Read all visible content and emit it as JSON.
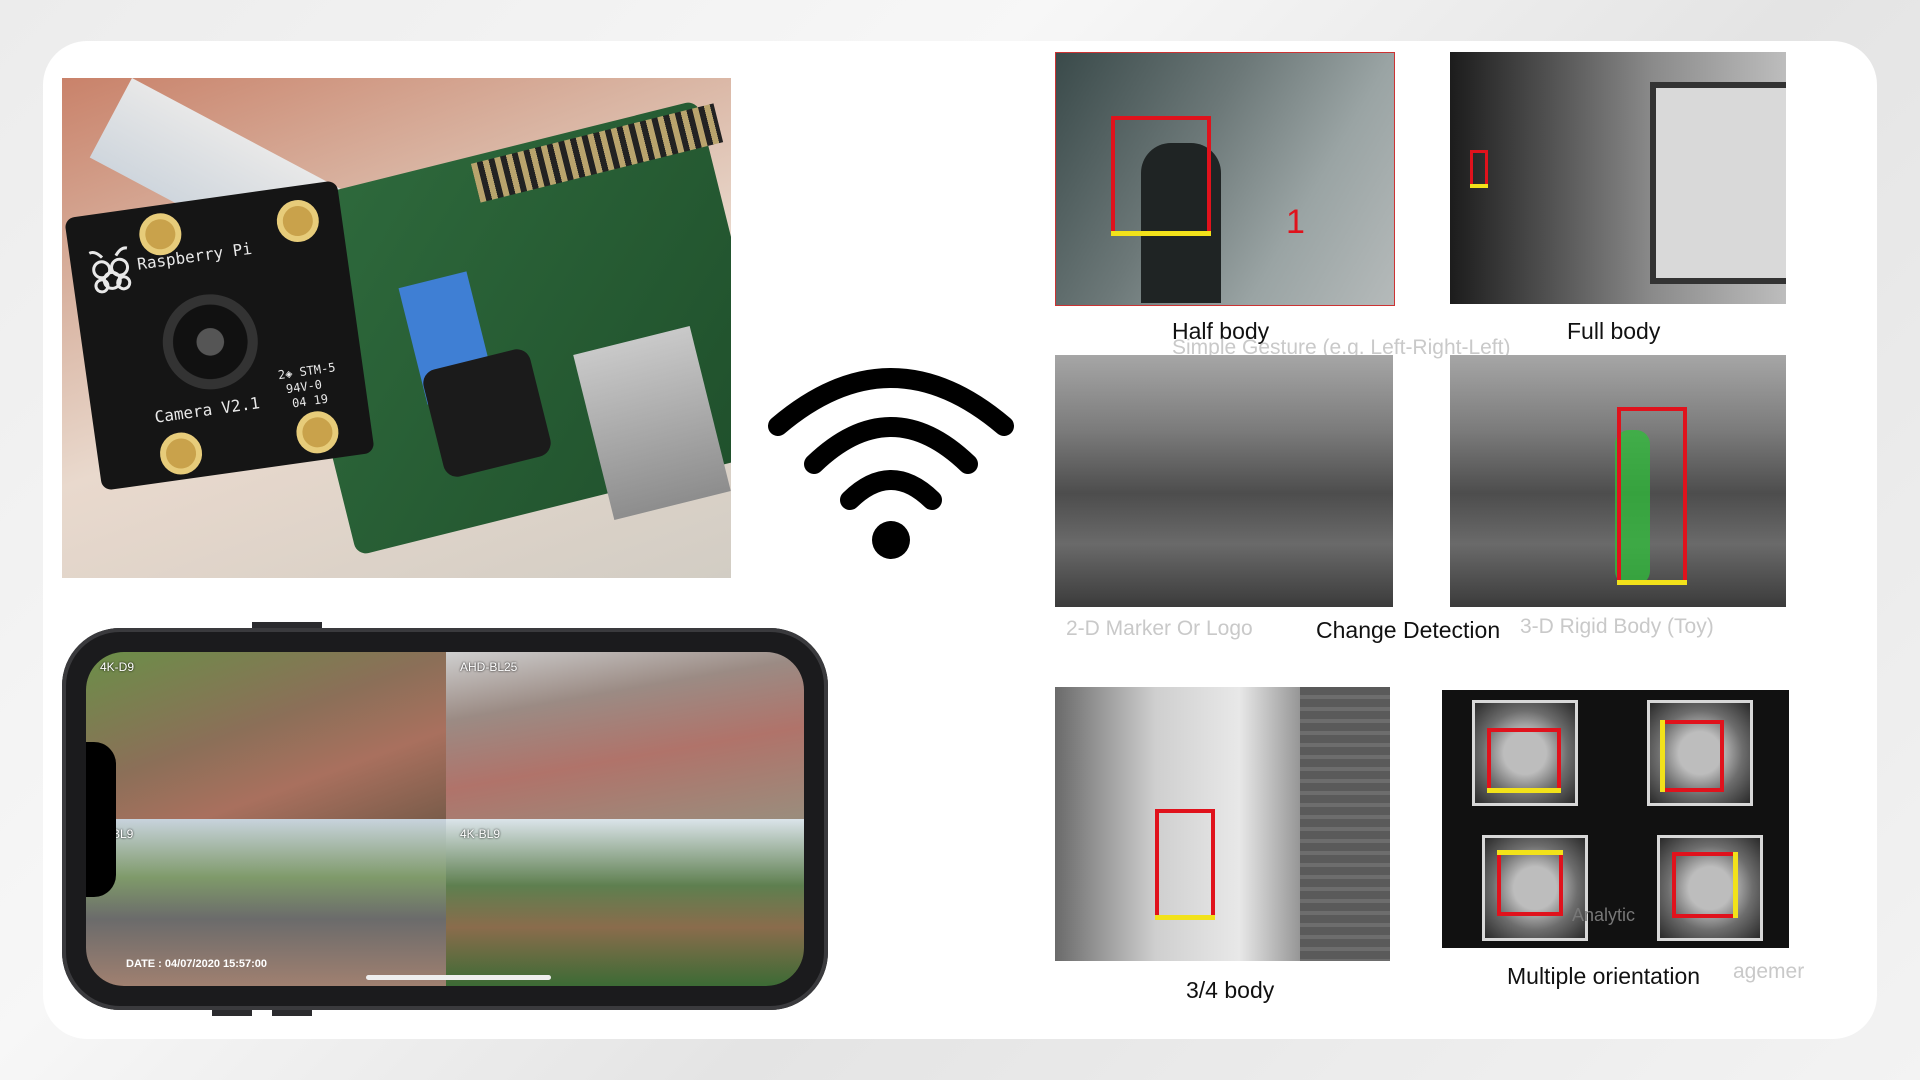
{
  "raspberry_pi": {
    "board_brand": "Raspberry Pi",
    "camera_model": "Camera V2.1",
    "marking_1": "2◈ STM-5",
    "marking_2": "94V-0",
    "marking_3": "04 19"
  },
  "phone_app": {
    "feeds": [
      {
        "label": "4K-D9"
      },
      {
        "label": "AHD-BL25"
      },
      {
        "label": "K-BL9"
      },
      {
        "label": "4K-BL9"
      }
    ],
    "date_label": "DATE :  04/07/2020  15:57:00"
  },
  "detections": {
    "half_body": "Half body",
    "full_body": "Full body",
    "change_detection": "Change Detection",
    "three_quarter_body": "3/4 body",
    "multiple_orientation": "Multiple orientation",
    "ghost_gesture": "Simple Gesture (e.g. Left-Right-Left)",
    "ghost_marker": "2-D Marker Or Logo",
    "ghost_rigid": "3-D Rigid Body (Toy)",
    "ghost_analytics": "Analytic",
    "ghost_mgmt": "agemer",
    "overlay_count": "1"
  },
  "icons": {
    "wifi": "wifi-icon",
    "raspberry": "raspberry-logo-icon"
  },
  "colors": {
    "box_red": "#e0121c",
    "box_yellow": "#f2e21a",
    "card": "#ffffff"
  }
}
